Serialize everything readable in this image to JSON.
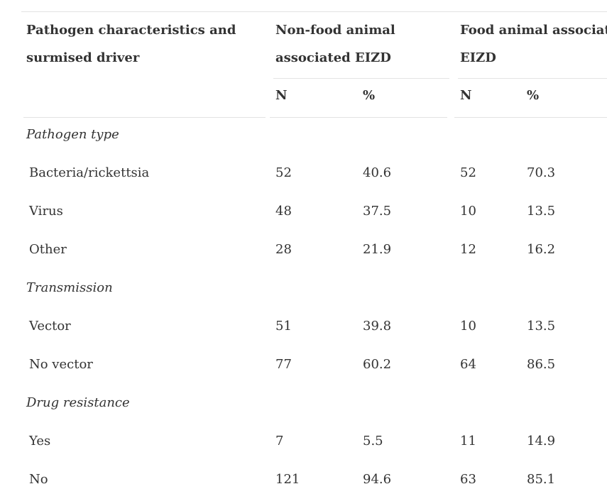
{
  "header": {
    "col0": [
      "Pathogen characteristics and",
      "surmised driver"
    ],
    "col1": [
      "Non-food animal",
      "associated EIZD"
    ],
    "col2": [
      "Food animal associated",
      "EIZD"
    ],
    "sub": [
      "N",
      "%",
      "N",
      "%"
    ]
  },
  "sections": [
    {
      "title": "Pathogen type",
      "rows": [
        {
          "label": "Bacteria/rickettsia",
          "v": [
            "52",
            "40.6",
            "52",
            "70.3"
          ]
        },
        {
          "label": "Virus",
          "v": [
            "48",
            "37.5",
            "10",
            "13.5"
          ]
        },
        {
          "label": "Other",
          "v": [
            "28",
            "21.9",
            "12",
            "16.2"
          ]
        }
      ]
    },
    {
      "title": "Transmission",
      "rows": [
        {
          "label": "Vector",
          "v": [
            "51",
            "39.8",
            "10",
            "13.5"
          ]
        },
        {
          "label": "No vector",
          "v": [
            "77",
            "60.2",
            "64",
            "86.5"
          ]
        }
      ]
    },
    {
      "title": "Drug resistance",
      "rows": [
        {
          "label": "Yes",
          "v": [
            "7",
            "5.5",
            "11",
            "14.9"
          ]
        },
        {
          "label": "No",
          "v": [
            "121",
            "94.6",
            "63",
            "85.1"
          ]
        }
      ]
    }
  ]
}
